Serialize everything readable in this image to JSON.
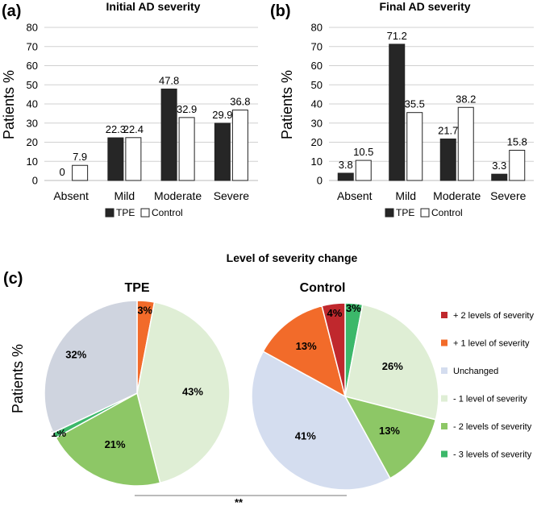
{
  "chart_data": [
    {
      "panel": "(a)",
      "type": "bar",
      "title": "Initial AD severity",
      "ylabel": "Patients %",
      "xlabel": "",
      "ylim": [
        0,
        80
      ],
      "yticks": [
        0,
        10,
        20,
        30,
        40,
        50,
        60,
        70,
        80
      ],
      "grid": true,
      "categories": [
        "Absent",
        "Mild",
        "Moderate",
        "Severe"
      ],
      "series": [
        {
          "name": "TPE",
          "color": "#262626",
          "values": [
            0,
            22.3,
            47.8,
            29.9
          ],
          "labels": [
            "0",
            "22.3",
            "47.8",
            "29.9"
          ]
        },
        {
          "name": "Control",
          "color": "#ffffff",
          "values": [
            7.9,
            22.4,
            32.9,
            36.8
          ],
          "labels": [
            "7.9",
            "22.4",
            "32.9",
            "36.8"
          ]
        }
      ],
      "legend": "bottom"
    },
    {
      "panel": "(b)",
      "type": "bar",
      "title": "Final AD severity",
      "ylabel": "Patients %",
      "xlabel": "",
      "ylim": [
        0,
        80
      ],
      "yticks": [
        0,
        10,
        20,
        30,
        40,
        50,
        60,
        70,
        80
      ],
      "grid": true,
      "categories": [
        "Absent",
        "Mild",
        "Moderate",
        "Severe"
      ],
      "series": [
        {
          "name": "TPE",
          "color": "#262626",
          "values": [
            3.8,
            71.2,
            21.7,
            3.3
          ],
          "labels": [
            "3.8",
            "71.2",
            "21.7",
            "3.3"
          ]
        },
        {
          "name": "Control",
          "color": "#ffffff",
          "values": [
            10.5,
            35.5,
            38.2,
            15.8
          ],
          "labels": [
            "10.5",
            "35.5",
            "38.2",
            "15.8"
          ]
        }
      ],
      "legend": "bottom"
    },
    {
      "panel": "(c)",
      "type": "pie",
      "title": "Level of severity change",
      "ylabel": "Patients %",
      "significance": "**",
      "legend_items": [
        {
          "name": "+ 2 levels of severity",
          "color": "#c0282d"
        },
        {
          "name": "+ 1 level of severity",
          "color": "#f26b2a"
        },
        {
          "name": "Unchanged",
          "color": "#d4ddef"
        },
        {
          "name": "- 1 level of severity",
          "color": "#dfeed5"
        },
        {
          "name": "- 2 levels of severity",
          "color": "#8dc766"
        },
        {
          "name": "- 3 levels of severity",
          "color": "#3cb86a"
        }
      ],
      "pies": [
        {
          "title": "TPE",
          "slices": [
            {
              "name": "+ 1 level of severity",
              "value": 3,
              "label": "3%",
              "color": "#f26b2a"
            },
            {
              "name": "- 1 level of severity",
              "value": 43,
              "label": "43%",
              "color": "#dfeed5"
            },
            {
              "name": "- 2 levels of severity",
              "value": 21,
              "label": "21%",
              "color": "#8dc766"
            },
            {
              "name": "- 3 levels of severity",
              "value": 1,
              "label": "1%",
              "color": "#3cb86a"
            },
            {
              "name": "Unchanged",
              "value": 32,
              "label": "32%",
              "color": "#cfd4df"
            }
          ]
        },
        {
          "title": "Control",
          "slices": [
            {
              "name": "- 3 levels of severity",
              "value": 3,
              "label": "3%",
              "color": "#3cb86a"
            },
            {
              "name": "- 1 level of severity",
              "value": 26,
              "label": "26%",
              "color": "#dfeed5"
            },
            {
              "name": "- 2 levels of severity",
              "value": 13,
              "label": "13%",
              "color": "#8dc766"
            },
            {
              "name": "Unchanged",
              "value": 41,
              "label": "41%",
              "color": "#d4ddef"
            },
            {
              "name": "+ 1 level of severity",
              "value": 13,
              "label": "13%",
              "color": "#f26b2a"
            },
            {
              "name": "+ 2 levels of severity",
              "value": 4,
              "label": "4%",
              "color": "#c0282d"
            }
          ]
        }
      ]
    }
  ]
}
